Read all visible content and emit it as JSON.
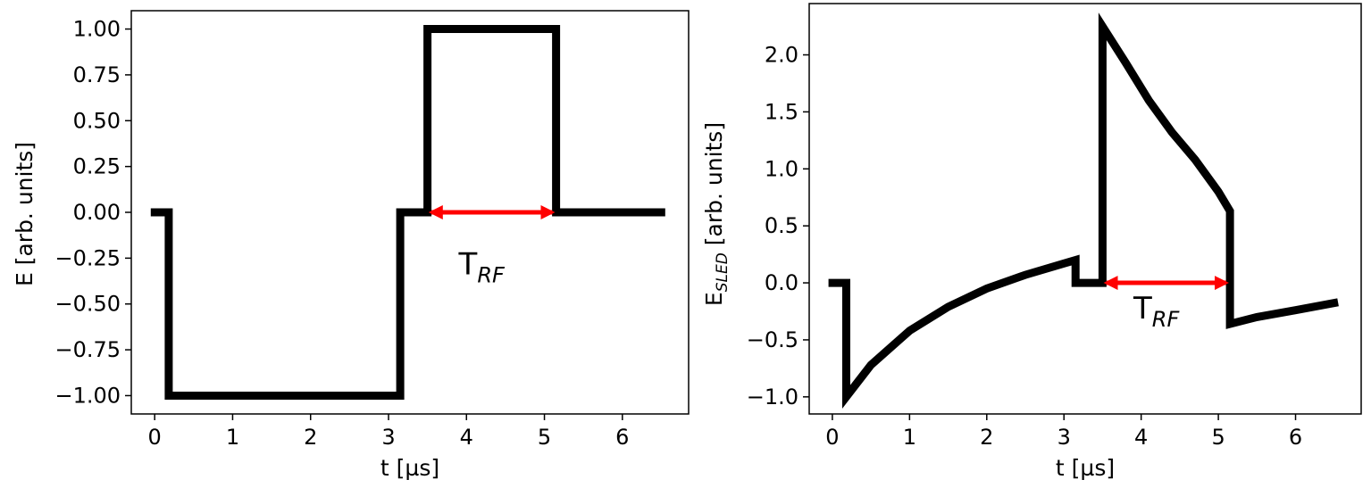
{
  "colors": {
    "signal": "#000000",
    "arrow": "#ff0000",
    "frame": "#000000"
  },
  "chart_data": [
    {
      "type": "line",
      "xlabel": "t [µs]",
      "ylabel": "E [arb. units]",
      "xlim": [
        -0.3,
        6.85
      ],
      "ylim": [
        -1.1,
        1.1
      ],
      "xticks": [
        0,
        1,
        2,
        3,
        4,
        5,
        6
      ],
      "yticks": [
        1.0,
        0.75,
        0.5,
        0.25,
        0.0,
        -0.25,
        -0.5,
        -0.75,
        -1.0
      ],
      "ytick_labels": [
        "1.00",
        "0.75",
        "0.50",
        "0.25",
        "0.00",
        "−0.25",
        "−0.50",
        "−0.75",
        "−1.00"
      ],
      "grid": false,
      "series": [
        {
          "x": [
            -0.05,
            0.18,
            0.18,
            3.15,
            3.15,
            3.5,
            3.5,
            5.15,
            5.15,
            6.55
          ],
          "y": [
            0,
            0,
            -1,
            -1,
            0,
            0,
            1,
            1,
            0,
            0
          ]
        }
      ],
      "annotation": {
        "label_main": "T",
        "label_sub": "RF",
        "arrow_x": [
          3.55,
          5.1
        ],
        "arrow_y": 0.0,
        "label_x": 3.9,
        "label_y": -0.28
      }
    },
    {
      "type": "line",
      "xlabel": "t [µs]",
      "ylabel_main": "E",
      "ylabel_sub": "SLED",
      "ylabel_rest": " [arb. units]",
      "xlim": [
        -0.3,
        6.85
      ],
      "ylim": [
        -1.15,
        2.45
      ],
      "xticks": [
        0,
        1,
        2,
        3,
        4,
        5,
        6
      ],
      "yticks": [
        2.0,
        1.5,
        1.0,
        0.5,
        0.0,
        -0.5,
        -1.0
      ],
      "ytick_labels": [
        "2.0",
        "1.5",
        "1.0",
        "0.5",
        "0.0",
        "−0.5",
        "−1.0"
      ],
      "grid": false,
      "series": [
        {
          "x": [
            -0.05,
            0.18,
            0.18,
            0.5,
            1.0,
            1.5,
            2.0,
            2.5,
            3.0,
            3.15,
            3.15,
            3.5,
            3.5,
            3.8,
            4.1,
            4.4,
            4.7,
            5.0,
            5.15,
            5.15,
            5.5,
            6.0,
            6.55
          ],
          "y": [
            0,
            0,
            -1.0,
            -0.72,
            -0.42,
            -0.21,
            -0.05,
            0.07,
            0.17,
            0.2,
            0,
            0,
            2.25,
            1.93,
            1.6,
            1.32,
            1.08,
            0.8,
            0.63,
            -0.36,
            -0.3,
            -0.24,
            -0.17
          ]
        }
      ],
      "annotation": {
        "label_main": "T",
        "label_sub": "RF",
        "arrow_x": [
          3.55,
          5.1
        ],
        "arrow_y": 0.0,
        "label_x": 3.9,
        "label_y": -0.22
      }
    }
  ]
}
